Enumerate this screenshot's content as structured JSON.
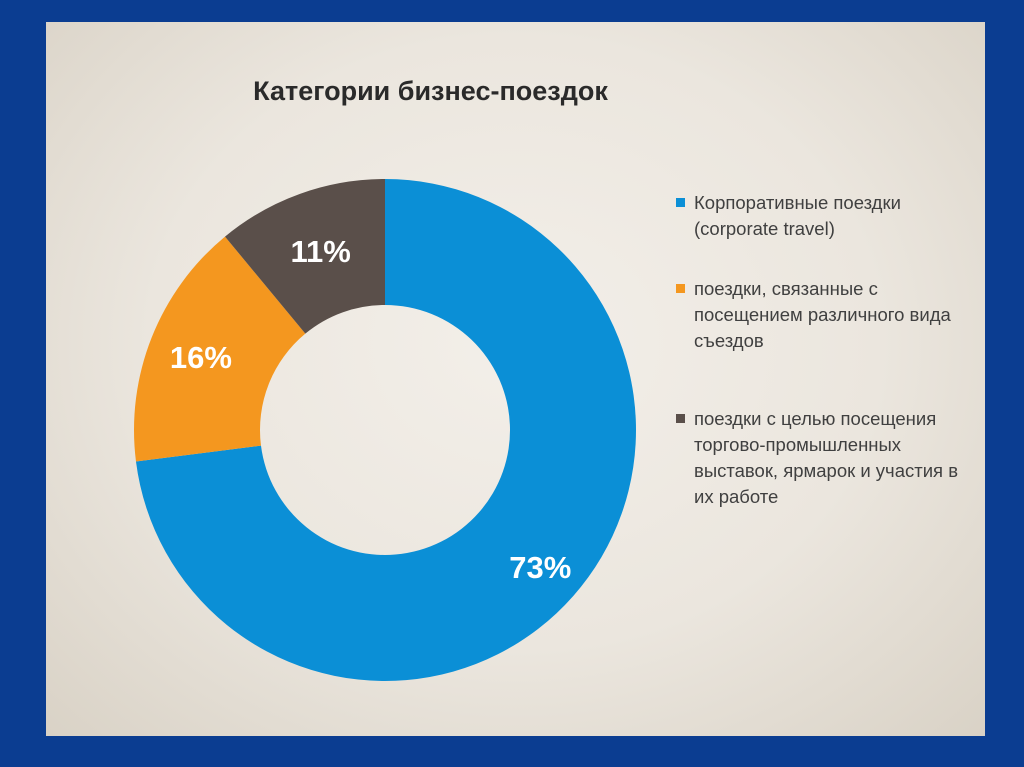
{
  "chart_data": {
    "type": "pie",
    "title": "Категории бизнес-поездок",
    "categories": [
      "Корпоративные поездки (corporate travel)",
      "поездки, связанные с посещением различного вида съездов",
      "поездки с целью посещения торгово-промышленных выставок, ярмарок и участия в их работе"
    ],
    "values": [
      73,
      16,
      11
    ],
    "data_labels": [
      "73%",
      "16%",
      "11%"
    ],
    "colors": [
      "#0b8fd6",
      "#f4971f",
      "#5a4f4a"
    ],
    "legend_position": "right",
    "donut": true
  }
}
